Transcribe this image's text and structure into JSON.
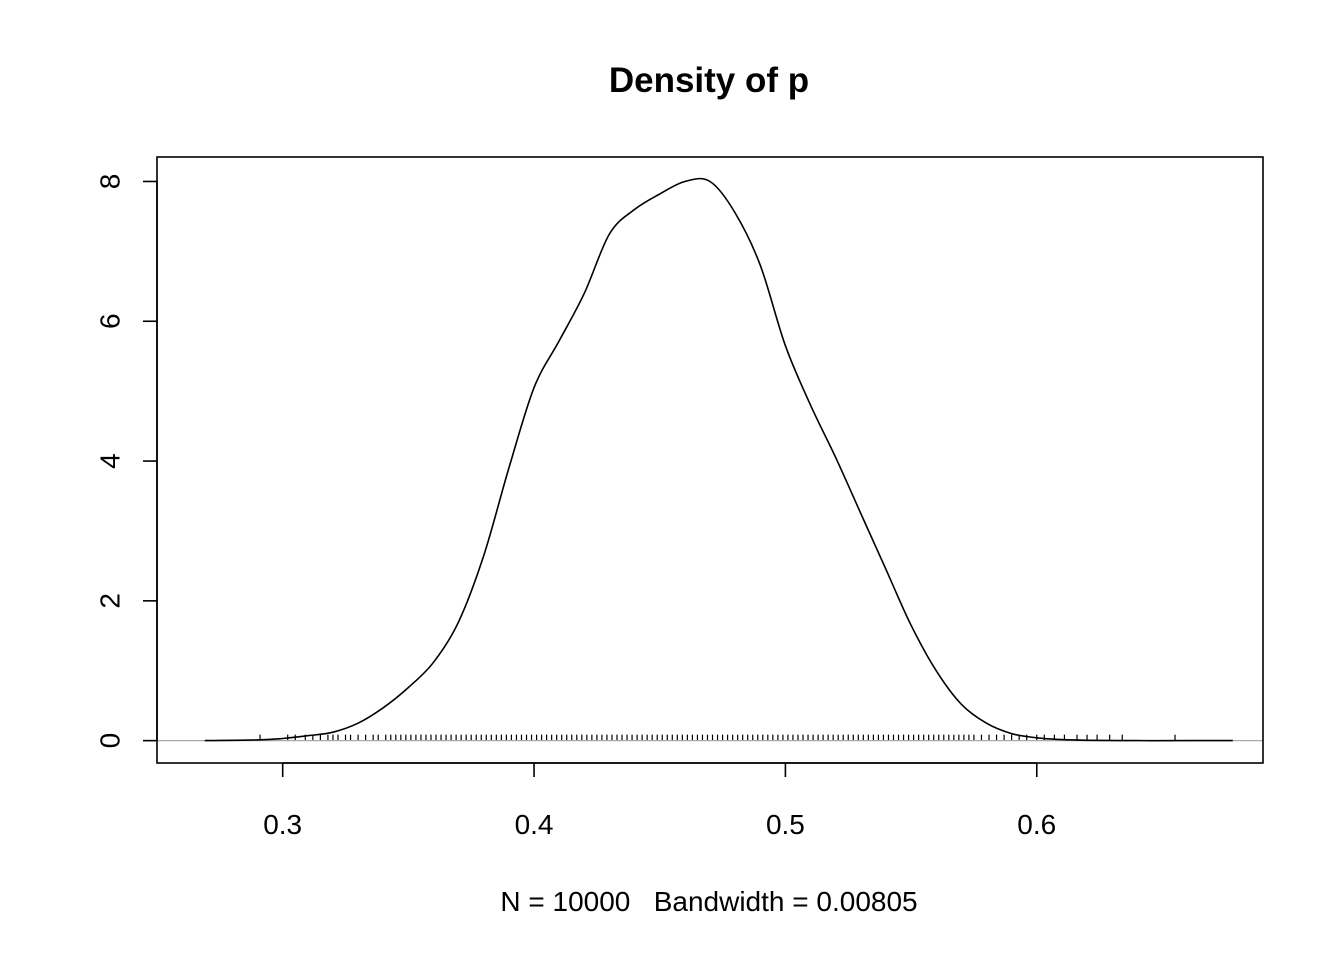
{
  "chart_data": {
    "type": "line",
    "title": "Density of p",
    "xlabel": "N = 10000   Bandwidth = 0.00805",
    "ylabel": "",
    "xlim": [
      0.25,
      0.69
    ],
    "ylim": [
      -0.32,
      8.35
    ],
    "x_ticks": [
      0.3,
      0.4,
      0.5,
      0.6
    ],
    "x_tick_labels": [
      "0.3",
      "0.4",
      "0.5",
      "0.6"
    ],
    "y_ticks": [
      0,
      2,
      4,
      6,
      8
    ],
    "y_tick_labels": [
      "0",
      "2",
      "4",
      "6",
      "8"
    ],
    "grid": false,
    "zero_line": true,
    "series": [
      {
        "x": [
          0.269,
          0.29,
          0.3,
          0.31,
          0.32,
          0.33,
          0.34,
          0.35,
          0.36,
          0.37,
          0.38,
          0.39,
          0.4,
          0.41,
          0.42,
          0.43,
          0.44,
          0.45,
          0.46,
          0.47,
          0.48,
          0.49,
          0.5,
          0.51,
          0.52,
          0.53,
          0.54,
          0.55,
          0.56,
          0.57,
          0.58,
          0.59,
          0.6,
          0.61,
          0.62,
          0.64,
          0.66,
          0.678
        ],
        "y": [
          0.0,
          0.01,
          0.03,
          0.07,
          0.12,
          0.25,
          0.47,
          0.76,
          1.12,
          1.7,
          2.65,
          3.9,
          5.05,
          5.72,
          6.4,
          7.25,
          7.6,
          7.82,
          8.0,
          8.0,
          7.55,
          6.8,
          5.65,
          4.8,
          4.05,
          3.25,
          2.45,
          1.65,
          1.0,
          0.52,
          0.25,
          0.1,
          0.04,
          0.015,
          0.005,
          0.0,
          0.0,
          0.0
        ]
      }
    ],
    "rug": [
      0.291,
      0.302,
      0.305,
      0.309,
      0.312,
      0.315,
      0.318,
      0.32,
      0.322,
      0.325,
      0.327,
      0.33,
      0.333,
      0.336,
      0.338,
      0.341,
      0.343,
      0.345,
      0.347,
      0.349,
      0.351,
      0.353,
      0.355,
      0.357,
      0.359,
      0.361,
      0.363,
      0.365,
      0.367,
      0.369,
      0.371,
      0.373,
      0.375,
      0.377,
      0.379,
      0.381,
      0.383,
      0.385,
      0.387,
      0.389,
      0.391,
      0.393,
      0.395,
      0.397,
      0.399,
      0.401,
      0.403,
      0.405,
      0.407,
      0.409,
      0.411,
      0.413,
      0.415,
      0.417,
      0.419,
      0.421,
      0.423,
      0.425,
      0.427,
      0.429,
      0.431,
      0.433,
      0.435,
      0.437,
      0.439,
      0.441,
      0.443,
      0.445,
      0.447,
      0.449,
      0.451,
      0.453,
      0.455,
      0.457,
      0.459,
      0.461,
      0.463,
      0.465,
      0.467,
      0.469,
      0.471,
      0.473,
      0.475,
      0.477,
      0.479,
      0.481,
      0.483,
      0.485,
      0.487,
      0.489,
      0.491,
      0.493,
      0.495,
      0.497,
      0.499,
      0.501,
      0.503,
      0.505,
      0.507,
      0.509,
      0.511,
      0.513,
      0.515,
      0.517,
      0.519,
      0.521,
      0.523,
      0.525,
      0.527,
      0.529,
      0.531,
      0.533,
      0.535,
      0.537,
      0.539,
      0.541,
      0.543,
      0.545,
      0.547,
      0.549,
      0.551,
      0.553,
      0.555,
      0.557,
      0.559,
      0.561,
      0.563,
      0.565,
      0.567,
      0.569,
      0.571,
      0.573,
      0.575,
      0.578,
      0.581,
      0.584,
      0.587,
      0.59,
      0.593,
      0.596,
      0.6,
      0.603,
      0.607,
      0.611,
      0.616,
      0.62,
      0.624,
      0.629,
      0.634,
      0.655
    ]
  }
}
